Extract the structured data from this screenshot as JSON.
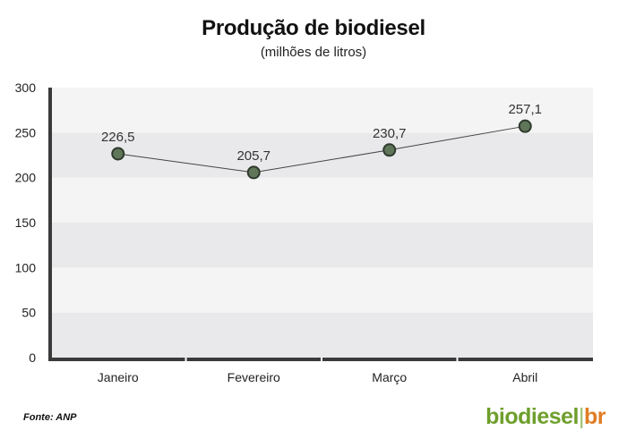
{
  "title": "Produção de biodiesel",
  "subtitle": "(milhões de litros)",
  "source": "Fonte: ANP",
  "brand": {
    "part1": "biodiesel",
    "separator": "|",
    "part2": "br"
  },
  "colors": {
    "band_light": "#f4f4f5",
    "band_dark": "#e9e9eb",
    "line": "#444444",
    "marker_fill": "#5f7659",
    "marker_stroke": "#2f3a2d",
    "axis": "#3a3a3a"
  },
  "chart_data": {
    "type": "line",
    "title": "Produção de biodiesel",
    "subtitle": "(milhões de litros)",
    "categories": [
      "Janeiro",
      "Fevereiro",
      "Março",
      "Abril"
    ],
    "series": [
      {
        "values": [
          226.5,
          205.7,
          230.7,
          257.1
        ]
      }
    ],
    "data_labels": [
      "226,5",
      "205,7",
      "230,7",
      "257,1"
    ],
    "yticks": [
      0,
      50,
      100,
      150,
      200,
      250,
      300
    ],
    "ylim": [
      0,
      300
    ],
    "grid": "alternating horizontal bands",
    "legend": "none"
  }
}
